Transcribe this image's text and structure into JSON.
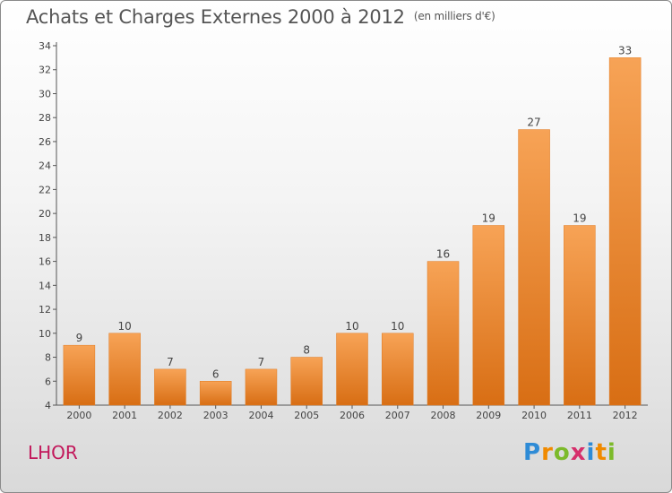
{
  "chart_data": {
    "type": "bar",
    "title": "Achats et Charges Externes 2000 à 2012",
    "unit": "(en milliers d'€)",
    "categories": [
      "2000",
      "2001",
      "2002",
      "2003",
      "2004",
      "2005",
      "2006",
      "2007",
      "2008",
      "2009",
      "2010",
      "2011",
      "2012"
    ],
    "values": [
      9,
      10,
      7,
      6,
      7,
      8,
      10,
      10,
      16,
      19,
      27,
      19,
      33
    ],
    "ylim": [
      4,
      34
    ],
    "yticks": [
      4,
      6,
      8,
      10,
      12,
      14,
      16,
      18,
      20,
      22,
      24,
      26,
      28,
      30,
      32,
      34
    ],
    "bar_color": "#f0882e",
    "xlabel": "",
    "ylabel": "",
    "grid": false,
    "show_value_labels": true
  },
  "footer": {
    "place": "LHOR",
    "logo_letters": [
      "P",
      "r",
      "o",
      "x",
      "i",
      "t",
      "i"
    ],
    "logo_colors": [
      "#2e8bd6",
      "#f08a00",
      "#7cba2a",
      "#d62f6b",
      "#2e8bd6",
      "#f08a00",
      "#7cba2a"
    ]
  }
}
